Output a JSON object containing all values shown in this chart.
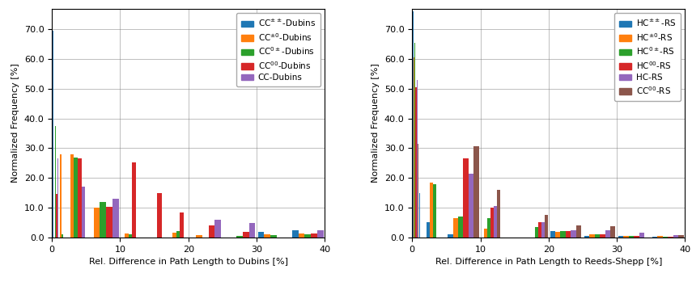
{
  "left": {
    "xlabel": "Rel. Difference in Path Length to Dubins [%]",
    "ylabel": "Normalized Frequency [%]",
    "bins": [
      0.0,
      1.0,
      2.0,
      5.0,
      10.0,
      13.0,
      17.0,
      20.0,
      25.0,
      30.0,
      35.0,
      40.0
    ],
    "series": [
      {
        "label": "CC$^{\\pm\\pm}$-Dubins",
        "color": "#1f77b4",
        "values": [
          69.5,
          0.0,
          0.0,
          0.0,
          0.0,
          0.0,
          0.0,
          0.0,
          0.0,
          1.8,
          2.3,
          3.0
        ]
      },
      {
        "label": "CC$^{\\pm 0}$-Dubins",
        "color": "#ff7f0e",
        "values": [
          0.0,
          28.0,
          28.0,
          10.0,
          1.2,
          0.0,
          1.5,
          0.8,
          0.0,
          1.0,
          1.2,
          1.3
        ]
      },
      {
        "label": "CC$^{0\\pm}$-Dubins",
        "color": "#2ca02c",
        "values": [
          37.5,
          1.0,
          27.0,
          12.0,
          1.0,
          0.0,
          2.0,
          0.0,
          0.5,
          0.8,
          1.0,
          1.2
        ]
      },
      {
        "label": "CC$^{00}$-Dubins",
        "color": "#d62728",
        "values": [
          14.5,
          0.0,
          26.5,
          10.2,
          25.2,
          15.0,
          8.5,
          4.0,
          1.8,
          0.0,
          1.2,
          1.0
        ]
      },
      {
        "label": "CC-Dubins",
        "color": "#9467bd",
        "values": [
          26.5,
          0.0,
          17.0,
          13.0,
          0.0,
          0.0,
          0.0,
          6.0,
          4.8,
          0.0,
          2.5,
          1.5
        ]
      }
    ],
    "xlim": [
      0,
      40
    ],
    "ylim": [
      0,
      77
    ],
    "yticks": [
      0.0,
      10.0,
      20.0,
      30.0,
      40.0,
      50.0,
      60.0,
      70.0
    ],
    "xticks": [
      0,
      10,
      20,
      30,
      40
    ]
  },
  "right": {
    "xlabel": "Rel. Difference in Path Length to Reeds-Shepp [%]",
    "ylabel": "Normalized Frequency [%]",
    "bins": [
      0.0,
      1.0,
      2.0,
      5.0,
      10.0,
      13.0,
      17.0,
      20.0,
      25.0,
      30.0,
      35.0,
      40.0
    ],
    "series": [
      {
        "label": "HC$^{\\pm\\pm}$-RS",
        "color": "#1f77b4",
        "values": [
          76.0,
          15.0,
          5.0,
          1.0,
          0.0,
          0.0,
          0.0,
          2.0,
          0.5,
          0.5,
          0.2,
          0.3
        ]
      },
      {
        "label": "HC$^{\\pm 0}$-RS",
        "color": "#ff7f0e",
        "values": [
          60.5,
          0.0,
          18.5,
          6.5,
          3.0,
          0.0,
          0.0,
          1.8,
          1.0,
          0.5,
          0.5,
          0.5
        ]
      },
      {
        "label": "HC$^{0\\pm}$-RS",
        "color": "#2ca02c",
        "values": [
          65.5,
          0.0,
          18.0,
          7.0,
          6.5,
          0.0,
          3.5,
          2.0,
          1.0,
          0.5,
          0.3,
          0.2
        ]
      },
      {
        "label": "HC$^{00}$-RS",
        "color": "#d62728",
        "values": [
          50.5,
          0.0,
          0.0,
          26.5,
          10.0,
          0.0,
          5.0,
          2.0,
          1.0,
          0.5,
          0.2,
          0.2
        ]
      },
      {
        "label": "HC-RS",
        "color": "#9467bd",
        "values": [
          53.0,
          0.0,
          0.0,
          21.5,
          10.5,
          0.0,
          5.0,
          2.5,
          2.3,
          1.5,
          0.8,
          0.5
        ]
      },
      {
        "label": "CC$^{00}$-RS",
        "color": "#8c564b",
        "values": [
          31.5,
          0.0,
          0.0,
          30.8,
          16.0,
          0.0,
          7.5,
          4.0,
          3.8,
          0.0,
          0.8,
          0.3
        ]
      }
    ],
    "xlim": [
      0,
      40
    ],
    "ylim": [
      0,
      77
    ],
    "yticks": [
      0.0,
      10.0,
      20.0,
      30.0,
      40.0,
      50.0,
      60.0,
      70.0
    ],
    "xticks": [
      0,
      10,
      20,
      30,
      40
    ]
  }
}
